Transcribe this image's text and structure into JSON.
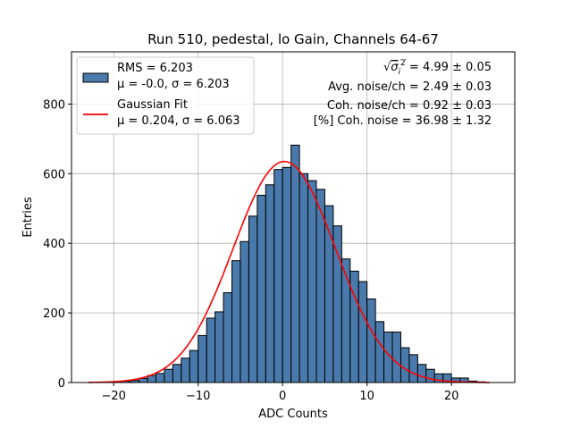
{
  "chart_data": {
    "type": "bar",
    "title": "Run 510, pedestal, lo Gain, Channels 64-67",
    "xlabel": "ADC Counts",
    "ylabel": "Entries",
    "xlim": [
      -25,
      27.5
    ],
    "ylim": [
      0,
      950
    ],
    "grid": true,
    "x_ticks": [
      -20,
      -10,
      0,
      10,
      20
    ],
    "y_ticks": [
      0,
      200,
      400,
      600,
      800
    ],
    "histogram": {
      "bin_edges_start": -23,
      "bin_width": 1,
      "counts": [
        0,
        0,
        1,
        2,
        4,
        6,
        12,
        20,
        26,
        38,
        52,
        70,
        92,
        135,
        185,
        203,
        258,
        350,
        405,
        478,
        538,
        568,
        612,
        618,
        682,
        600,
        580,
        555,
        508,
        450,
        355,
        320,
        290,
        240,
        175,
        145,
        145,
        100,
        80,
        52,
        38,
        25,
        25,
        13,
        13,
        4,
        2,
        0
      ]
    },
    "fit_curve": {
      "mu": 0.204,
      "sigma": 6.063,
      "amplitude": 635,
      "x_range": [
        -23,
        24.5
      ]
    },
    "legend": {
      "position": "top-left",
      "entries": [
        {
          "line1": "RMS = 6.203",
          "line2": "μ = -0.0, σ = 6.203",
          "color": "#4a7aab"
        },
        {
          "line1": "Gaussian Fit",
          "line2": "μ = 0.204, σ = 6.063",
          "color": "#ff0000"
        }
      ]
    },
    "annotations": [
      {
        "prefix": "√",
        "symbol": "σ",
        "sub": "i",
        "sup": "2",
        "suffix": " = 4.99 ± 0.05"
      },
      {
        "text": "Avg. noise/ch = 2.49 ± 0.03"
      },
      {
        "text": "Coh. noise/ch = 0.92 ± 0.03"
      },
      {
        "text": "[%] Coh. noise = 36.98 ± 1.32"
      }
    ],
    "colors": {
      "bar": "#4a7aab",
      "fit": "#ff0000"
    }
  }
}
